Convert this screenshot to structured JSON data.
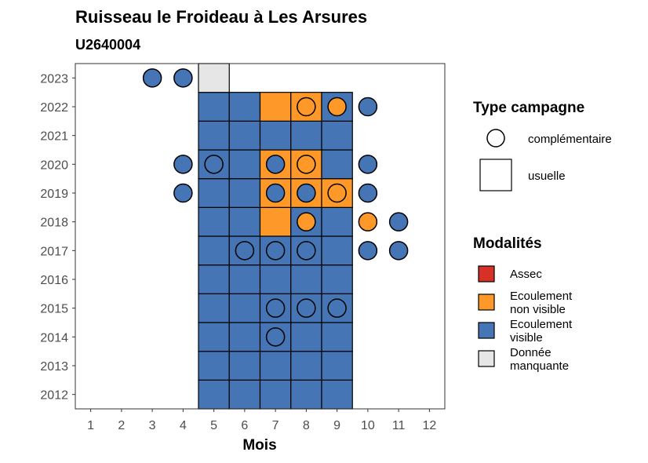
{
  "chart_data": {
    "type": "heatmap",
    "title": "Ruisseau le Froideau à Les Arsures",
    "subtitle": "U2640004",
    "xlabel": "Mois",
    "ylabel": "",
    "x_ticks": [
      "1",
      "2",
      "3",
      "4",
      "5",
      "6",
      "7",
      "8",
      "9",
      "10",
      "11",
      "12"
    ],
    "y_ticks": [
      "2012",
      "2013",
      "2014",
      "2015",
      "2016",
      "2017",
      "2018",
      "2019",
      "2020",
      "2021",
      "2022",
      "2023"
    ],
    "xlim": [
      0.5,
      12.5
    ],
    "ylim": [
      2011.5,
      2023.5
    ],
    "grid": false,
    "legend_position": "right",
    "colors": {
      "Assec": "#d73027",
      "Ecoulement non visible": "#fe9929",
      "Ecoulement visible": "#4575b4",
      "Donnée manquante": "#e6e6e6"
    },
    "usuelle": [
      {
        "year": 2012,
        "month": 5,
        "mod": "Ecoulement visible"
      },
      {
        "year": 2012,
        "month": 6,
        "mod": "Ecoulement visible"
      },
      {
        "year": 2012,
        "month": 7,
        "mod": "Ecoulement visible"
      },
      {
        "year": 2012,
        "month": 8,
        "mod": "Ecoulement visible"
      },
      {
        "year": 2012,
        "month": 9,
        "mod": "Ecoulement visible"
      },
      {
        "year": 2013,
        "month": 5,
        "mod": "Ecoulement visible"
      },
      {
        "year": 2013,
        "month": 6,
        "mod": "Ecoulement visible"
      },
      {
        "year": 2013,
        "month": 7,
        "mod": "Ecoulement visible"
      },
      {
        "year": 2013,
        "month": 8,
        "mod": "Ecoulement visible"
      },
      {
        "year": 2013,
        "month": 9,
        "mod": "Ecoulement visible"
      },
      {
        "year": 2014,
        "month": 5,
        "mod": "Ecoulement visible"
      },
      {
        "year": 2014,
        "month": 6,
        "mod": "Ecoulement visible"
      },
      {
        "year": 2014,
        "month": 7,
        "mod": "Ecoulement visible"
      },
      {
        "year": 2014,
        "month": 8,
        "mod": "Ecoulement visible"
      },
      {
        "year": 2014,
        "month": 9,
        "mod": "Ecoulement visible"
      },
      {
        "year": 2015,
        "month": 5,
        "mod": "Ecoulement visible"
      },
      {
        "year": 2015,
        "month": 6,
        "mod": "Ecoulement visible"
      },
      {
        "year": 2015,
        "month": 7,
        "mod": "Ecoulement visible"
      },
      {
        "year": 2015,
        "month": 8,
        "mod": "Ecoulement visible"
      },
      {
        "year": 2015,
        "month": 9,
        "mod": "Ecoulement visible"
      },
      {
        "year": 2016,
        "month": 5,
        "mod": "Ecoulement visible"
      },
      {
        "year": 2016,
        "month": 6,
        "mod": "Ecoulement visible"
      },
      {
        "year": 2016,
        "month": 7,
        "mod": "Ecoulement visible"
      },
      {
        "year": 2016,
        "month": 8,
        "mod": "Ecoulement visible"
      },
      {
        "year": 2016,
        "month": 9,
        "mod": "Ecoulement visible"
      },
      {
        "year": 2017,
        "month": 5,
        "mod": "Ecoulement visible"
      },
      {
        "year": 2017,
        "month": 6,
        "mod": "Ecoulement visible"
      },
      {
        "year": 2017,
        "month": 7,
        "mod": "Ecoulement visible"
      },
      {
        "year": 2017,
        "month": 8,
        "mod": "Ecoulement visible"
      },
      {
        "year": 2017,
        "month": 9,
        "mod": "Ecoulement visible"
      },
      {
        "year": 2018,
        "month": 5,
        "mod": "Ecoulement visible"
      },
      {
        "year": 2018,
        "month": 6,
        "mod": "Ecoulement visible"
      },
      {
        "year": 2018,
        "month": 7,
        "mod": "Ecoulement non visible"
      },
      {
        "year": 2018,
        "month": 8,
        "mod": "Ecoulement visible"
      },
      {
        "year": 2018,
        "month": 9,
        "mod": "Ecoulement visible"
      },
      {
        "year": 2019,
        "month": 5,
        "mod": "Ecoulement visible"
      },
      {
        "year": 2019,
        "month": 6,
        "mod": "Ecoulement visible"
      },
      {
        "year": 2019,
        "month": 7,
        "mod": "Ecoulement non visible"
      },
      {
        "year": 2019,
        "month": 8,
        "mod": "Ecoulement non visible"
      },
      {
        "year": 2019,
        "month": 9,
        "mod": "Ecoulement non visible"
      },
      {
        "year": 2020,
        "month": 5,
        "mod": "Ecoulement visible"
      },
      {
        "year": 2020,
        "month": 6,
        "mod": "Ecoulement visible"
      },
      {
        "year": 2020,
        "month": 7,
        "mod": "Ecoulement non visible"
      },
      {
        "year": 2020,
        "month": 8,
        "mod": "Ecoulement non visible"
      },
      {
        "year": 2020,
        "month": 9,
        "mod": "Ecoulement visible"
      },
      {
        "year": 2021,
        "month": 5,
        "mod": "Ecoulement visible"
      },
      {
        "year": 2021,
        "month": 6,
        "mod": "Ecoulement visible"
      },
      {
        "year": 2021,
        "month": 7,
        "mod": "Ecoulement visible"
      },
      {
        "year": 2021,
        "month": 8,
        "mod": "Ecoulement visible"
      },
      {
        "year": 2021,
        "month": 9,
        "mod": "Ecoulement visible"
      },
      {
        "year": 2022,
        "month": 5,
        "mod": "Ecoulement visible"
      },
      {
        "year": 2022,
        "month": 6,
        "mod": "Ecoulement visible"
      },
      {
        "year": 2022,
        "month": 7,
        "mod": "Ecoulement non visible"
      },
      {
        "year": 2022,
        "month": 8,
        "mod": "Ecoulement non visible"
      },
      {
        "year": 2022,
        "month": 9,
        "mod": "Ecoulement visible"
      },
      {
        "year": 2023,
        "month": 5,
        "mod": "Donnée manquante"
      }
    ],
    "complementaire": [
      {
        "year": 2023,
        "month": 3,
        "mod": "Ecoulement visible"
      },
      {
        "year": 2023,
        "month": 4,
        "mod": "Ecoulement visible"
      },
      {
        "year": 2022,
        "month": 8,
        "mod": "Ecoulement non visible"
      },
      {
        "year": 2022,
        "month": 9,
        "mod": "Ecoulement non visible"
      },
      {
        "year": 2022,
        "month": 10,
        "mod": "Ecoulement visible"
      },
      {
        "year": 2020,
        "month": 4,
        "mod": "Ecoulement visible"
      },
      {
        "year": 2020,
        "month": 5,
        "mod": "Ecoulement visible"
      },
      {
        "year": 2020,
        "month": 7,
        "mod": "Ecoulement visible"
      },
      {
        "year": 2020,
        "month": 8,
        "mod": "Ecoulement non visible"
      },
      {
        "year": 2020,
        "month": 10,
        "mod": "Ecoulement visible"
      },
      {
        "year": 2019,
        "month": 4,
        "mod": "Ecoulement visible"
      },
      {
        "year": 2019,
        "month": 7,
        "mod": "Ecoulement visible"
      },
      {
        "year": 2019,
        "month": 8,
        "mod": "Ecoulement visible"
      },
      {
        "year": 2019,
        "month": 9,
        "mod": "Ecoulement non visible"
      },
      {
        "year": 2019,
        "month": 10,
        "mod": "Ecoulement visible"
      },
      {
        "year": 2018,
        "month": 8,
        "mod": "Ecoulement non visible"
      },
      {
        "year": 2018,
        "month": 10,
        "mod": "Ecoulement non visible"
      },
      {
        "year": 2018,
        "month": 11,
        "mod": "Ecoulement visible"
      },
      {
        "year": 2017,
        "month": 6,
        "mod": "Ecoulement visible"
      },
      {
        "year": 2017,
        "month": 7,
        "mod": "Ecoulement visible"
      },
      {
        "year": 2017,
        "month": 8,
        "mod": "Ecoulement visible"
      },
      {
        "year": 2017,
        "month": 10,
        "mod": "Ecoulement visible"
      },
      {
        "year": 2017,
        "month": 11,
        "mod": "Ecoulement visible"
      },
      {
        "year": 2015,
        "month": 7,
        "mod": "Ecoulement visible"
      },
      {
        "year": 2015,
        "month": 8,
        "mod": "Ecoulement visible"
      },
      {
        "year": 2015,
        "month": 9,
        "mod": "Ecoulement visible"
      },
      {
        "year": 2014,
        "month": 7,
        "mod": "Ecoulement visible"
      }
    ],
    "legend_type": {
      "title": "Type campagne",
      "items": [
        "complémentaire",
        "usuelle"
      ]
    },
    "legend_mod": {
      "title": "Modalités",
      "items": [
        {
          "key": "Assec",
          "lines": [
            "Assec"
          ]
        },
        {
          "key": "Ecoulement non visible",
          "lines": [
            "Ecoulement",
            "non visible"
          ]
        },
        {
          "key": "Ecoulement visible",
          "lines": [
            "Ecoulement",
            "visible"
          ]
        },
        {
          "key": "Donnée manquante",
          "lines": [
            "Donnée",
            "manquante"
          ]
        }
      ]
    }
  }
}
